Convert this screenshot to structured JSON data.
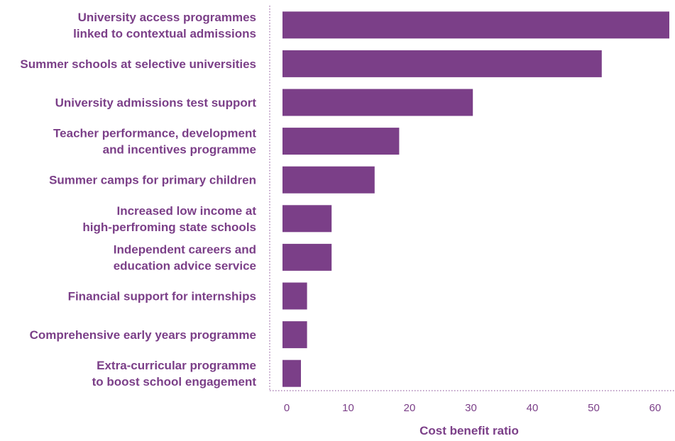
{
  "chart_data": {
    "type": "bar",
    "orientation": "horizontal",
    "categories": [
      [
        "University access programmes",
        "linked to contextual admissions"
      ],
      [
        "Summer schools at selective universities"
      ],
      [
        "University admissions test support"
      ],
      [
        "Teacher performance, development",
        "and incentives programme"
      ],
      [
        "Summer camps for primary children"
      ],
      [
        "Increased low income at",
        "high-perfroming state schools"
      ],
      [
        "Independent careers and",
        "education advice service"
      ],
      [
        "Financial support for internships"
      ],
      [
        "Comprehensive early years programme"
      ],
      [
        "Extra-curricular programme",
        "to boost school engagement"
      ]
    ],
    "values": [
      64,
      52,
      31,
      19,
      15,
      8,
      8,
      4,
      4,
      3
    ],
    "xlabel": "Cost benefit ratio",
    "ylabel": "",
    "xlim": [
      0,
      63
    ],
    "xticks": [
      0,
      10,
      20,
      30,
      40,
      50,
      60
    ],
    "grid": false,
    "bar_color": "#7b3f88",
    "text_color": "#7b3f88",
    "axis_line_color": "#9b6aa6"
  }
}
